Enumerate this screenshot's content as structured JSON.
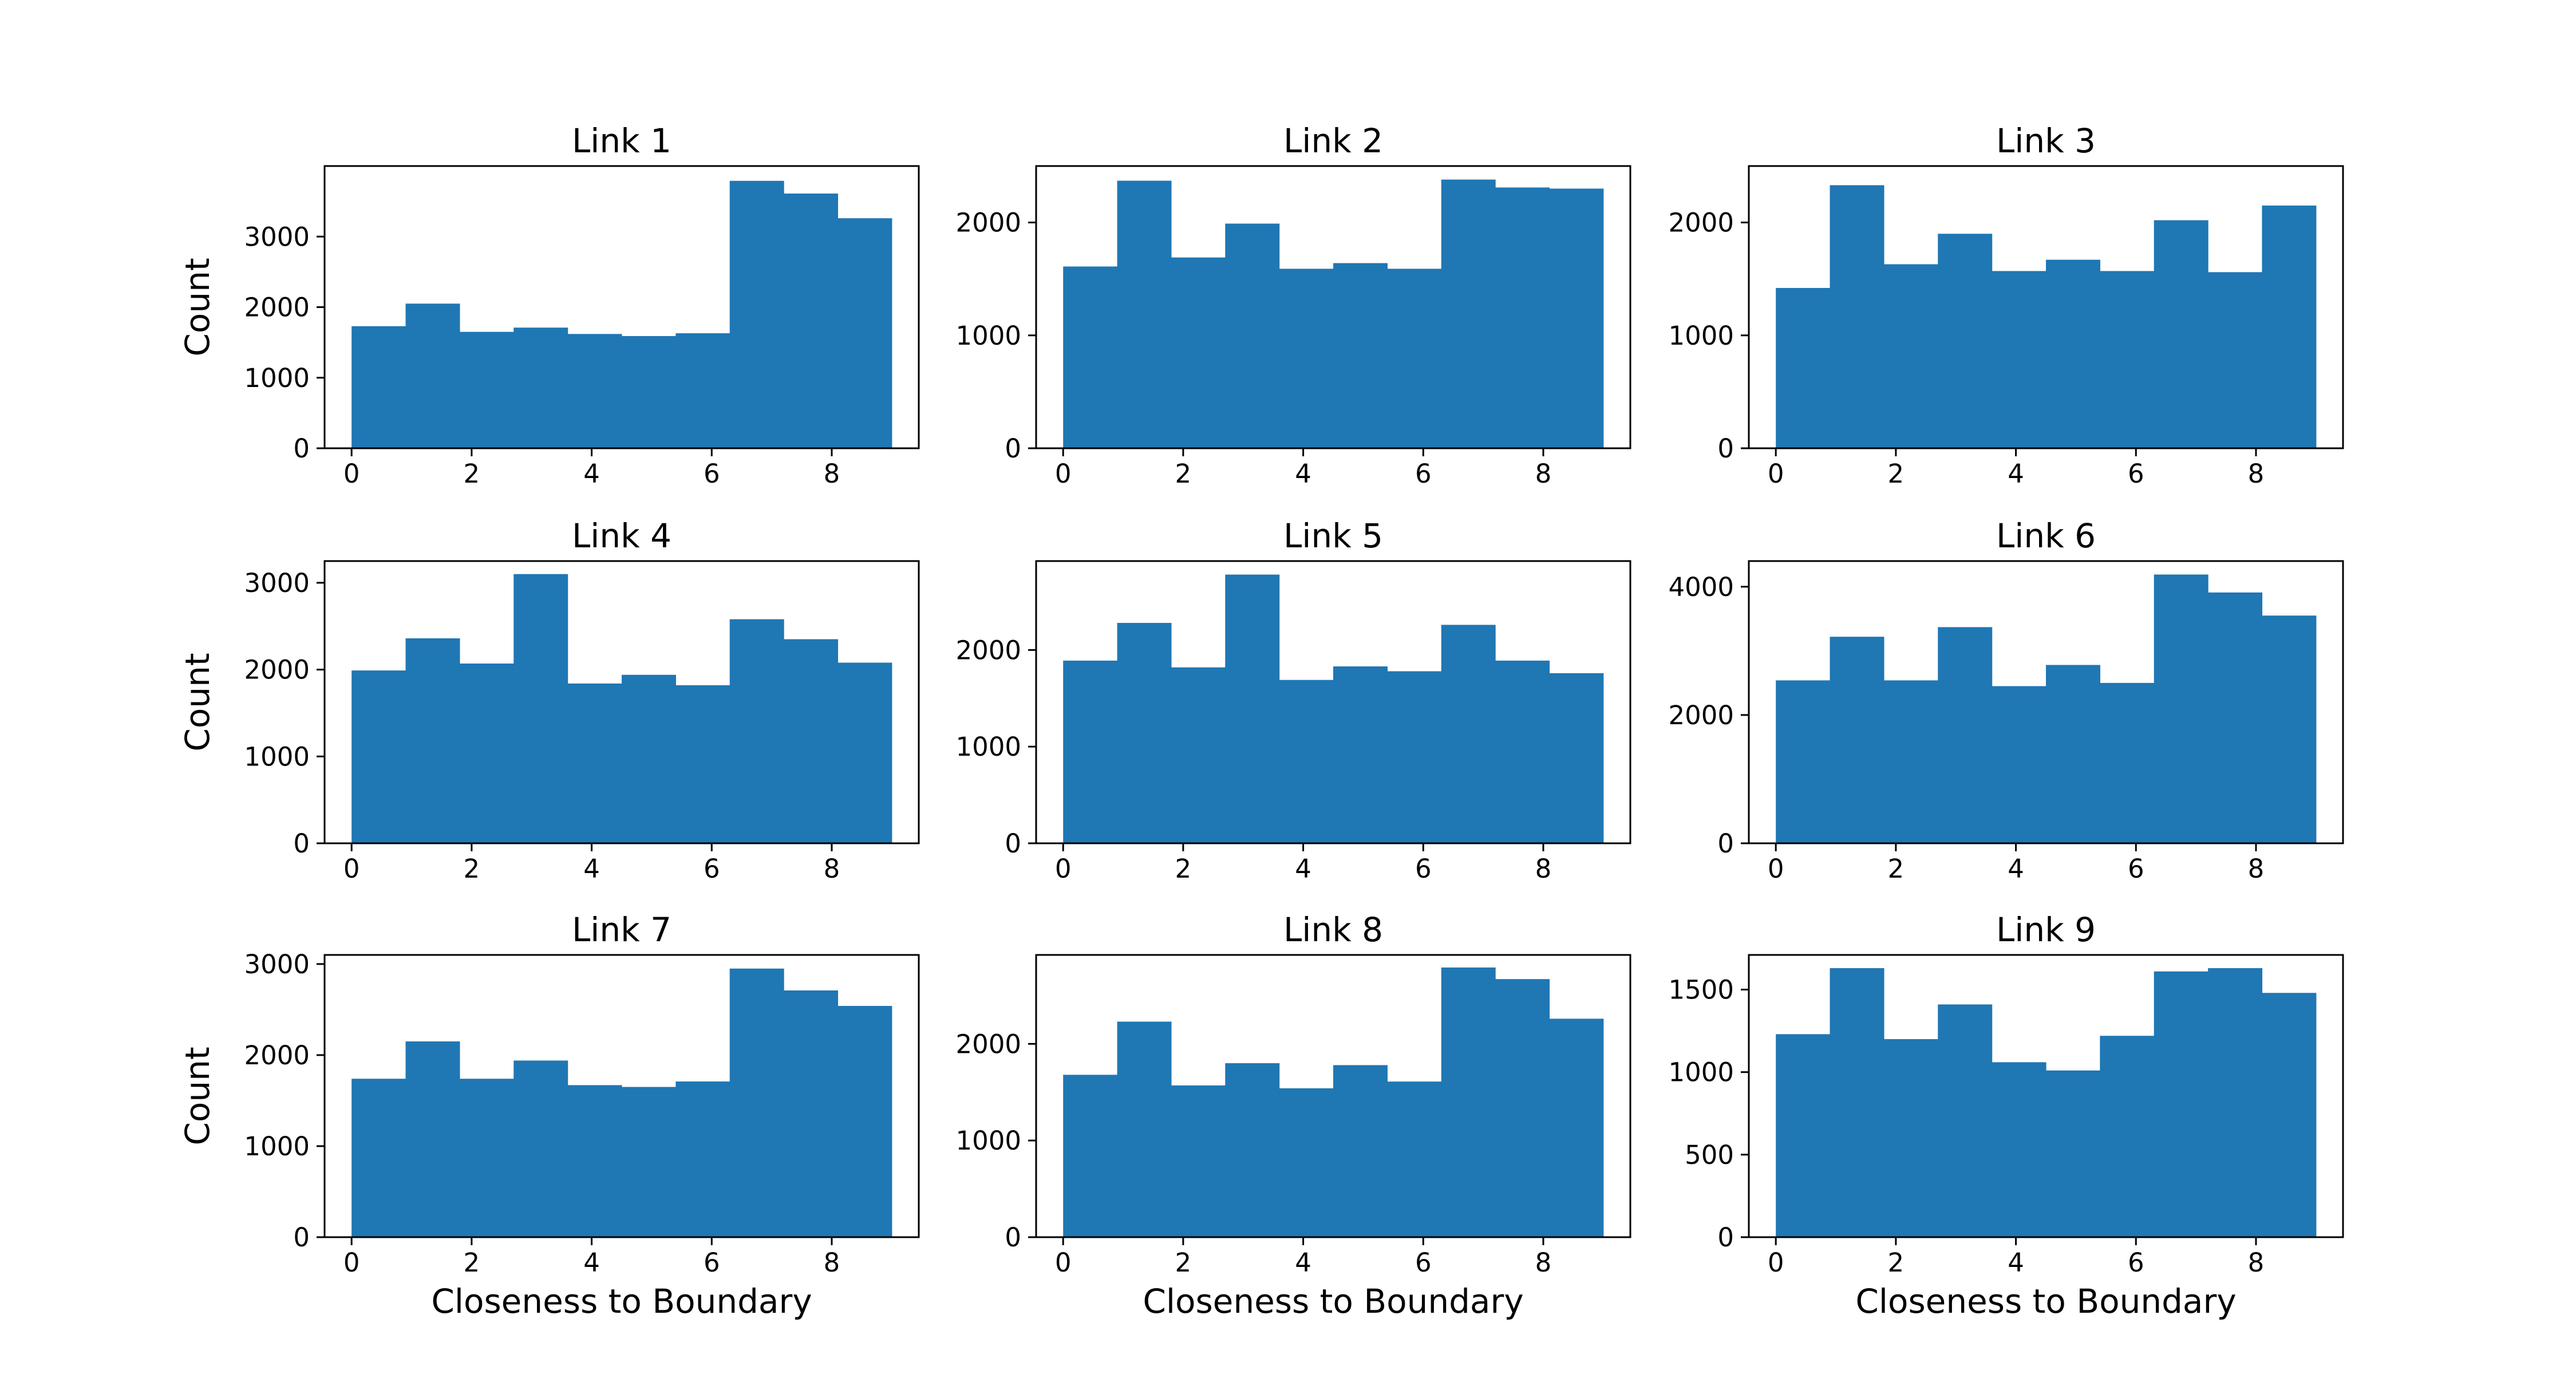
{
  "figure": {
    "bar_color": "#1f77b4",
    "xlabel": "Closeness to Boundary",
    "ylabel": "Count"
  },
  "chart_data": [
    {
      "type": "bar",
      "title": "Link 1",
      "xlabel": "",
      "ylabel": "Count",
      "bin_edges": [
        0,
        0.9,
        1.8,
        2.7,
        3.6,
        4.5,
        5.4,
        6.3,
        7.2,
        8.1,
        9.0
      ],
      "values": [
        1730,
        2050,
        1650,
        1710,
        1620,
        1590,
        1630,
        3790,
        3610,
        3260
      ],
      "xlim": [
        -0.45,
        9.45
      ],
      "ylim": [
        0,
        4000
      ],
      "xticks": [
        0,
        2,
        4,
        6,
        8
      ],
      "yticks": [
        0,
        1000,
        2000,
        3000
      ]
    },
    {
      "type": "bar",
      "title": "Link 2",
      "xlabel": "",
      "ylabel": "",
      "bin_edges": [
        0,
        0.9,
        1.8,
        2.7,
        3.6,
        4.5,
        5.4,
        6.3,
        7.2,
        8.1,
        9.0
      ],
      "values": [
        1610,
        2370,
        1690,
        1990,
        1590,
        1640,
        1590,
        2380,
        2310,
        2300
      ],
      "xlim": [
        -0.45,
        9.45
      ],
      "ylim": [
        0,
        2500
      ],
      "xticks": [
        0,
        2,
        4,
        6,
        8
      ],
      "yticks": [
        0,
        1000,
        2000
      ]
    },
    {
      "type": "bar",
      "title": "Link 3",
      "xlabel": "",
      "ylabel": "",
      "bin_edges": [
        0,
        0.9,
        1.8,
        2.7,
        3.6,
        4.5,
        5.4,
        6.3,
        7.2,
        8.1,
        9.0
      ],
      "values": [
        1420,
        2330,
        1630,
        1900,
        1570,
        1670,
        1570,
        2020,
        1560,
        2150
      ],
      "xlim": [
        -0.45,
        9.45
      ],
      "ylim": [
        0,
        2500
      ],
      "xticks": [
        0,
        2,
        4,
        6,
        8
      ],
      "yticks": [
        0,
        1000,
        2000
      ]
    },
    {
      "type": "bar",
      "title": "Link 4",
      "xlabel": "",
      "ylabel": "Count",
      "bin_edges": [
        0,
        0.9,
        1.8,
        2.7,
        3.6,
        4.5,
        5.4,
        6.3,
        7.2,
        8.1,
        9.0
      ],
      "values": [
        1990,
        2360,
        2070,
        3100,
        1840,
        1940,
        1820,
        2580,
        2350,
        2080
      ],
      "xlim": [
        -0.45,
        9.45
      ],
      "ylim": [
        0,
        3250
      ],
      "xticks": [
        0,
        2,
        4,
        6,
        8
      ],
      "yticks": [
        0,
        1000,
        2000,
        3000
      ]
    },
    {
      "type": "bar",
      "title": "Link 5",
      "xlabel": "",
      "ylabel": "",
      "bin_edges": [
        0,
        0.9,
        1.8,
        2.7,
        3.6,
        4.5,
        5.4,
        6.3,
        7.2,
        8.1,
        9.0
      ],
      "values": [
        1890,
        2280,
        1820,
        2780,
        1690,
        1830,
        1780,
        2260,
        1890,
        1760
      ],
      "xlim": [
        -0.45,
        9.45
      ],
      "ylim": [
        0,
        2920
      ],
      "xticks": [
        0,
        2,
        4,
        6,
        8
      ],
      "yticks": [
        0,
        1000,
        2000
      ]
    },
    {
      "type": "bar",
      "title": "Link 6",
      "xlabel": "",
      "ylabel": "",
      "bin_edges": [
        0,
        0.9,
        1.8,
        2.7,
        3.6,
        4.5,
        5.4,
        6.3,
        7.2,
        8.1,
        9.0
      ],
      "values": [
        2540,
        3220,
        2540,
        3370,
        2450,
        2780,
        2500,
        4190,
        3910,
        3550
      ],
      "xlim": [
        -0.45,
        9.45
      ],
      "ylim": [
        0,
        4400
      ],
      "xticks": [
        0,
        2,
        4,
        6,
        8
      ],
      "yticks": [
        0,
        2000,
        4000
      ]
    },
    {
      "type": "bar",
      "title": "Link 7",
      "xlabel": "Closeness to Boundary",
      "ylabel": "Count",
      "bin_edges": [
        0,
        0.9,
        1.8,
        2.7,
        3.6,
        4.5,
        5.4,
        6.3,
        7.2,
        8.1,
        9.0
      ],
      "values": [
        1740,
        2150,
        1740,
        1940,
        1670,
        1650,
        1710,
        2950,
        2710,
        2540
      ],
      "xlim": [
        -0.45,
        9.45
      ],
      "ylim": [
        0,
        3100
      ],
      "xticks": [
        0,
        2,
        4,
        6,
        8
      ],
      "yticks": [
        0,
        1000,
        2000,
        3000
      ]
    },
    {
      "type": "bar",
      "title": "Link 8",
      "xlabel": "Closeness to Boundary",
      "ylabel": "",
      "bin_edges": [
        0,
        0.9,
        1.8,
        2.7,
        3.6,
        4.5,
        5.4,
        6.3,
        7.2,
        8.1,
        9.0
      ],
      "values": [
        1680,
        2230,
        1570,
        1800,
        1540,
        1780,
        1610,
        2790,
        2670,
        2260
      ],
      "xlim": [
        -0.45,
        9.45
      ],
      "ylim": [
        0,
        2920
      ],
      "xticks": [
        0,
        2,
        4,
        6,
        8
      ],
      "yticks": [
        0,
        1000,
        2000
      ]
    },
    {
      "type": "bar",
      "title": "Link 9",
      "xlabel": "Closeness to Boundary",
      "ylabel": "",
      "bin_edges": [
        0,
        0.9,
        1.8,
        2.7,
        3.6,
        4.5,
        5.4,
        6.3,
        7.2,
        8.1,
        9.0
      ],
      "values": [
        1230,
        1630,
        1200,
        1410,
        1060,
        1010,
        1220,
        1610,
        1630,
        1480
      ],
      "xlim": [
        -0.45,
        9.45
      ],
      "ylim": [
        0,
        1710
      ],
      "xticks": [
        0,
        2,
        4,
        6,
        8
      ],
      "yticks": [
        0,
        500,
        1000,
        1500
      ]
    }
  ]
}
